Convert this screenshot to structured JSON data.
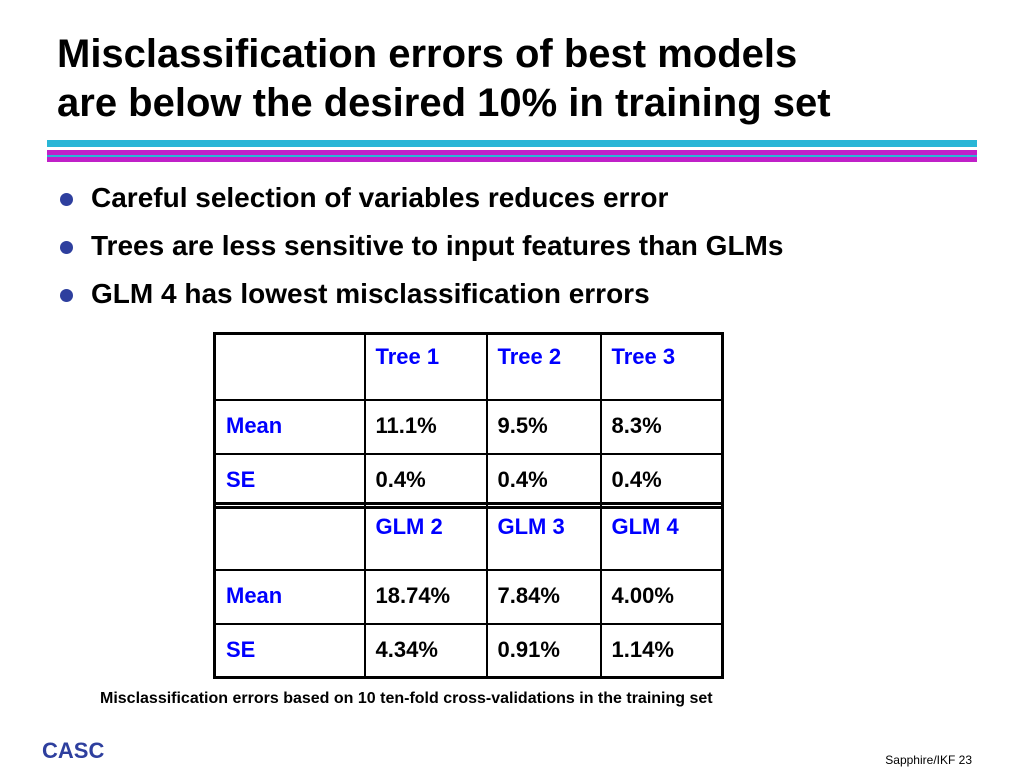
{
  "title": {
    "line1": "Misclassification errors of best models",
    "line2": "are below the desired 10% in training set"
  },
  "colors": {
    "cyan_rule": "#29b6d6",
    "magenta_rule": "#c020c8",
    "bullet": "#2e3f9e",
    "table_header_text": "#0000ff",
    "logo_text": "#2e3f9e"
  },
  "bullets": [
    "Careful selection of variables reduces error",
    "Trees are less sensitive to input features than GLMs",
    "GLM 4 has lowest misclassification errors"
  ],
  "tables": {
    "trees": {
      "columns": [
        "",
        "Tree 1",
        "Tree 2",
        "Tree 3"
      ],
      "rows": [
        {
          "label": "Mean",
          "values": [
            "11.1%",
            "9.5%",
            "8.3%"
          ]
        },
        {
          "label": "SE",
          "values": [
            "0.4%",
            "0.4%",
            "0.4%"
          ]
        }
      ]
    },
    "glms": {
      "columns": [
        "",
        "GLM 2",
        "GLM 3",
        "GLM 4"
      ],
      "rows": [
        {
          "label": "Mean",
          "values": [
            "18.74%",
            "7.84%",
            "4.00%"
          ]
        },
        {
          "label": "SE",
          "values": [
            "4.34%",
            "0.91%",
            "1.14%"
          ]
        }
      ]
    }
  },
  "caption": "Misclassification errors based on 10 ten-fold cross-validations in the training set",
  "footer": {
    "logo": "CASC",
    "slide_label": "Sapphire/IKF 23"
  }
}
